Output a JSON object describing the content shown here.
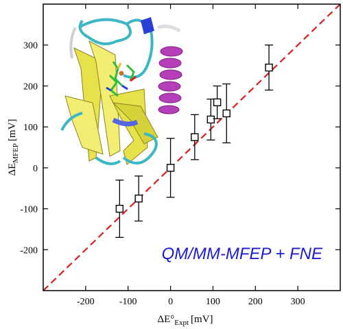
{
  "chart_data": {
    "type": "scatter",
    "title": "",
    "xlabel": {
      "main": "ΔE°",
      "sub": "Expt",
      "unit": "[mV]"
    },
    "ylabel": {
      "main": "ΔE",
      "sub": "MFEP",
      "unit": "[mV]"
    },
    "xlim": [
      -300,
      400
    ],
    "ylim": [
      -300,
      400
    ],
    "xticks": [
      -200,
      -100,
      0,
      100,
      200,
      300
    ],
    "yticks": [
      -200,
      -100,
      0,
      100,
      200,
      300
    ],
    "grid": false,
    "legend": "none",
    "series": [
      {
        "marker": "open-square",
        "color": "#000000",
        "points": [
          {
            "x": -120,
            "y": -100,
            "err": 70
          },
          {
            "x": -75,
            "y": -75,
            "err": 55
          },
          {
            "x": 0,
            "y": 0,
            "err": 72
          },
          {
            "x": 57,
            "y": 75,
            "err": 55
          },
          {
            "x": 95,
            "y": 118,
            "err": 50
          },
          {
            "x": 110,
            "y": 160,
            "err": 40
          },
          {
            "x": 132,
            "y": 133,
            "err": 72
          },
          {
            "x": 232,
            "y": 245,
            "err": 55
          }
        ]
      }
    ],
    "reference_line": {
      "style": "dashed",
      "color": "#e01b1b",
      "slope": 1,
      "intercept": 0
    },
    "annotation": {
      "text": "QM/MM-MFEP + FNE",
      "color": "#1a1ad6",
      "position": "lower-right"
    },
    "inset": {
      "description": "protein-ribbon-structure",
      "position": "upper-left"
    }
  }
}
